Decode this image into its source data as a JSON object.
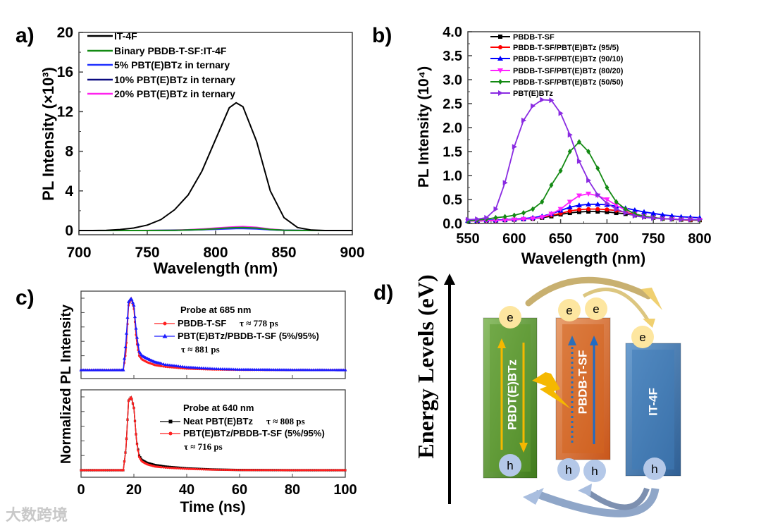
{
  "watermark": "大数跨境",
  "chart_data": [
    {
      "panel": "a)",
      "type": "line",
      "xlabel": "Wavelength (nm)",
      "ylabel": "PL Intensity (×10³)",
      "xlim": [
        700,
        900
      ],
      "ylim": [
        0,
        20
      ],
      "xticks": [
        700,
        750,
        800,
        850,
        900
      ],
      "yticks": [
        0,
        4,
        8,
        12,
        16,
        20
      ],
      "legend_position": "top-left",
      "x": [
        700,
        710,
        720,
        730,
        740,
        750,
        760,
        770,
        780,
        790,
        800,
        810,
        815,
        820,
        830,
        840,
        850,
        860,
        870,
        880,
        890,
        900
      ],
      "series": [
        {
          "name": "IT-4F",
          "color": "#000000",
          "values": [
            0,
            0,
            0.02,
            0.1,
            0.25,
            0.55,
            1.1,
            2.1,
            3.6,
            6.0,
            9.2,
            12.4,
            12.9,
            12.5,
            9.0,
            4.0,
            1.3,
            0.3,
            0.05,
            0,
            0,
            0
          ]
        },
        {
          "name": "Binary PBDB-T-SF:IT-4F",
          "color": "#138a13",
          "values": [
            0,
            0,
            0,
            0,
            0,
            0,
            0.01,
            0.02,
            0.05,
            0.1,
            0.18,
            0.26,
            0.29,
            0.3,
            0.25,
            0.1,
            0.03,
            0.01,
            0,
            0,
            0,
            0
          ]
        },
        {
          "name": "5% PBT(E)BTz in ternary",
          "color": "#2233ff",
          "values": [
            0,
            0,
            0,
            0,
            0,
            0,
            0.01,
            0.02,
            0.04,
            0.08,
            0.12,
            0.17,
            0.19,
            0.2,
            0.16,
            0.07,
            0.02,
            0.01,
            0,
            0,
            0,
            0
          ]
        },
        {
          "name": "10% PBT(E)BTz in ternary",
          "color": "#0a0a80",
          "values": [
            0,
            0,
            0,
            0,
            0,
            0,
            0.01,
            0.02,
            0.05,
            0.09,
            0.15,
            0.21,
            0.24,
            0.25,
            0.2,
            0.09,
            0.03,
            0.01,
            0,
            0,
            0,
            0
          ]
        },
        {
          "name": "20% PBT(E)BTz in ternary",
          "color": "#ff22ee",
          "values": [
            0,
            0,
            0,
            0,
            0,
            0.01,
            0.02,
            0.04,
            0.08,
            0.15,
            0.25,
            0.34,
            0.38,
            0.4,
            0.32,
            0.14,
            0.04,
            0.01,
            0,
            0,
            0,
            0
          ]
        }
      ]
    },
    {
      "panel": "b)",
      "type": "line",
      "xlabel": "Wavelength (nm)",
      "ylabel": "PL Intensity (10⁴)",
      "xlim": [
        550,
        800
      ],
      "ylim": [
        0,
        4.0
      ],
      "xticks": [
        550,
        600,
        650,
        700,
        750,
        800
      ],
      "yticks": [
        "0.0",
        "0.5",
        "1.0",
        "1.5",
        "2.0",
        "2.5",
        "3.0",
        "3.5",
        "4.0"
      ],
      "legend_position": "top-left",
      "x": [
        550,
        560,
        570,
        580,
        590,
        600,
        610,
        620,
        630,
        640,
        650,
        660,
        670,
        680,
        690,
        700,
        710,
        720,
        730,
        740,
        750,
        760,
        770,
        780,
        790,
        800
      ],
      "series": [
        {
          "name": "PBDB-T-SF",
          "color": "#000000",
          "marker": "square",
          "values": [
            0.05,
            0.05,
            0.06,
            0.06,
            0.07,
            0.08,
            0.09,
            0.1,
            0.12,
            0.15,
            0.19,
            0.22,
            0.24,
            0.25,
            0.25,
            0.24,
            0.22,
            0.2,
            0.17,
            0.14,
            0.12,
            0.1,
            0.09,
            0.08,
            0.07,
            0.07
          ]
        },
        {
          "name": "PBDB-T-SF/PBT(E)BTz (95/5)",
          "color": "#ff0000",
          "marker": "circle",
          "values": [
            0.05,
            0.05,
            0.06,
            0.06,
            0.07,
            0.08,
            0.09,
            0.11,
            0.13,
            0.17,
            0.21,
            0.26,
            0.29,
            0.3,
            0.3,
            0.29,
            0.27,
            0.23,
            0.19,
            0.15,
            0.12,
            0.1,
            0.09,
            0.08,
            0.07,
            0.07
          ]
        },
        {
          "name": "PBDB-T-SF/PBT(E)BTz (90/10)",
          "color": "#0000ff",
          "marker": "triangle-up",
          "values": [
            0.06,
            0.06,
            0.07,
            0.07,
            0.08,
            0.09,
            0.1,
            0.12,
            0.15,
            0.2,
            0.27,
            0.34,
            0.38,
            0.4,
            0.4,
            0.39,
            0.36,
            0.32,
            0.28,
            0.24,
            0.21,
            0.18,
            0.16,
            0.14,
            0.13,
            0.12
          ]
        },
        {
          "name": "PBDB-T-SF/PBT(E)BTz (80/20)",
          "color": "#ff22ff",
          "marker": "triangle-down",
          "values": [
            0.05,
            0.05,
            0.06,
            0.06,
            0.07,
            0.08,
            0.09,
            0.1,
            0.13,
            0.2,
            0.3,
            0.45,
            0.58,
            0.62,
            0.58,
            0.5,
            0.38,
            0.28,
            0.2,
            0.15,
            0.12,
            0.1,
            0.09,
            0.08,
            0.08,
            0.07
          ]
        },
        {
          "name": "PBDB-T-SF/PBT(E)BTz (50/50)",
          "color": "#138a13",
          "marker": "diamond",
          "values": [
            0.05,
            0.07,
            0.09,
            0.12,
            0.14,
            0.17,
            0.22,
            0.3,
            0.45,
            0.8,
            1.1,
            1.5,
            1.7,
            1.5,
            1.15,
            0.75,
            0.45,
            0.3,
            0.2,
            0.15,
            0.12,
            0.1,
            0.09,
            0.08,
            0.08,
            0.07
          ]
        },
        {
          "name": "PBT(E)BTz",
          "color": "#8a2be2",
          "marker": "triangle-right",
          "values": [
            0.08,
            0.09,
            0.12,
            0.3,
            0.85,
            1.6,
            2.15,
            2.45,
            2.58,
            2.57,
            2.3,
            1.85,
            1.3,
            0.9,
            0.6,
            0.42,
            0.3,
            0.22,
            0.16,
            0.13,
            0.11,
            0.1,
            0.09,
            0.08,
            0.08,
            0.08
          ]
        }
      ]
    },
    {
      "panel": "c)",
      "type": "line",
      "xlabel": "Time (ns)",
      "ylabel": "Normalized PL Intensity",
      "xlim": [
        0,
        100
      ],
      "ylim": [
        0,
        1
      ],
      "xticks": [
        0,
        20,
        40,
        60,
        80,
        100
      ],
      "x": [
        0,
        15,
        16,
        17,
        18,
        19,
        20,
        21,
        22,
        23,
        25,
        28,
        32,
        40,
        50,
        60,
        80,
        100
      ],
      "subplots": [
        {
          "title": "Probe at 685 nm",
          "series": [
            {
              "name": "PBDB-T-SF",
              "tau": "τ ≈ 778 ps",
              "color": "#ff2020",
              "marker": "circle",
              "values": [
                0,
                0,
                0,
                0.25,
                0.9,
                1.0,
                0.85,
                0.4,
                0.2,
                0.15,
                0.11,
                0.07,
                0.045,
                0.02,
                0.008,
                0.003,
                0,
                0
              ]
            },
            {
              "name": "PBT(E)BTz/PBDB-T-SF (5%/95%)",
              "tau": "τ ≈ 881 ps",
              "color": "#1a1aff",
              "marker": "triangle-up",
              "values": [
                0,
                0,
                0,
                0.4,
                0.95,
                1.0,
                0.9,
                0.5,
                0.26,
                0.2,
                0.16,
                0.11,
                0.075,
                0.04,
                0.018,
                0.008,
                0.002,
                0
              ]
            }
          ]
        },
        {
          "title": "Probe at 640 nm",
          "series": [
            {
              "name": "Neat PBT(E)BTz",
              "tau": "τ ≈ 808 ps",
              "color": "#000000",
              "marker": "square",
              "values": [
                0,
                0,
                0,
                0.3,
                0.95,
                1.0,
                0.85,
                0.4,
                0.2,
                0.14,
                0.1,
                0.07,
                0.05,
                0.025,
                0.01,
                0.003,
                0,
                0
              ]
            },
            {
              "name": "PBT(E)BTz/PBDB-T-SF (5%/95%)",
              "tau": "τ ≈ 716 ps",
              "color": "#ff2020",
              "marker": "circle",
              "values": [
                0,
                0,
                0,
                0.3,
                0.95,
                1.0,
                0.85,
                0.4,
                0.18,
                0.12,
                0.08,
                0.05,
                0.035,
                0.018,
                0.007,
                0.002,
                0,
                0
              ]
            }
          ]
        }
      ]
    }
  ],
  "diagram": {
    "panel": "d)",
    "axis_label": "Energy Levels (eV)",
    "materials": [
      {
        "name": "PBDT(E)BTz",
        "color": "#5e9b32"
      },
      {
        "name": "PBDB-T-SF",
        "color": "#d4651f"
      },
      {
        "name": "IT-4F",
        "color": "#3f7bb8"
      }
    ],
    "electron_label": "e",
    "hole_label": "h"
  }
}
